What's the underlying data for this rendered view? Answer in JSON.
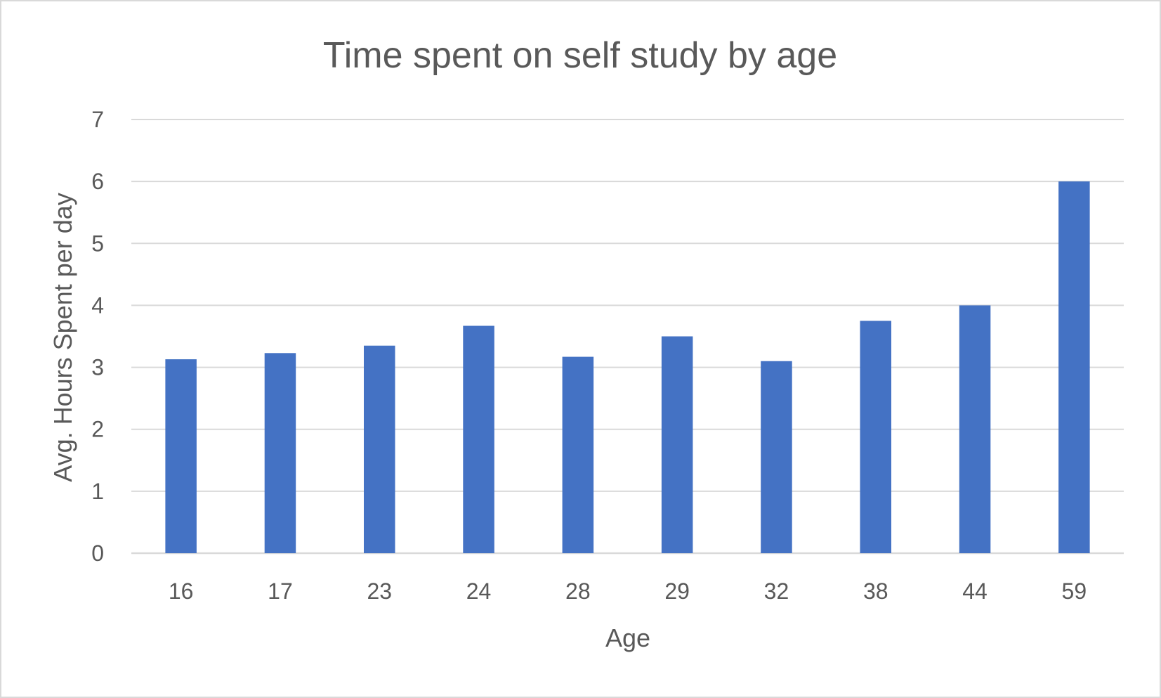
{
  "chart_data": {
    "type": "bar",
    "title": "Time spent on self study by age",
    "xlabel": "Age",
    "ylabel": "Avg. Hours Spent per day",
    "categories": [
      "16",
      "17",
      "23",
      "24",
      "28",
      "29",
      "32",
      "38",
      "44",
      "59"
    ],
    "values": [
      3.13,
      3.23,
      3.35,
      3.67,
      3.17,
      3.5,
      3.1,
      3.75,
      4.0,
      6.0
    ],
    "ylim": [
      0,
      7
    ],
    "yticks": [
      "0",
      "1",
      "2",
      "3",
      "4",
      "5",
      "6",
      "7"
    ],
    "grid": true,
    "legend": "none",
    "bar_color": "#4472c4"
  }
}
